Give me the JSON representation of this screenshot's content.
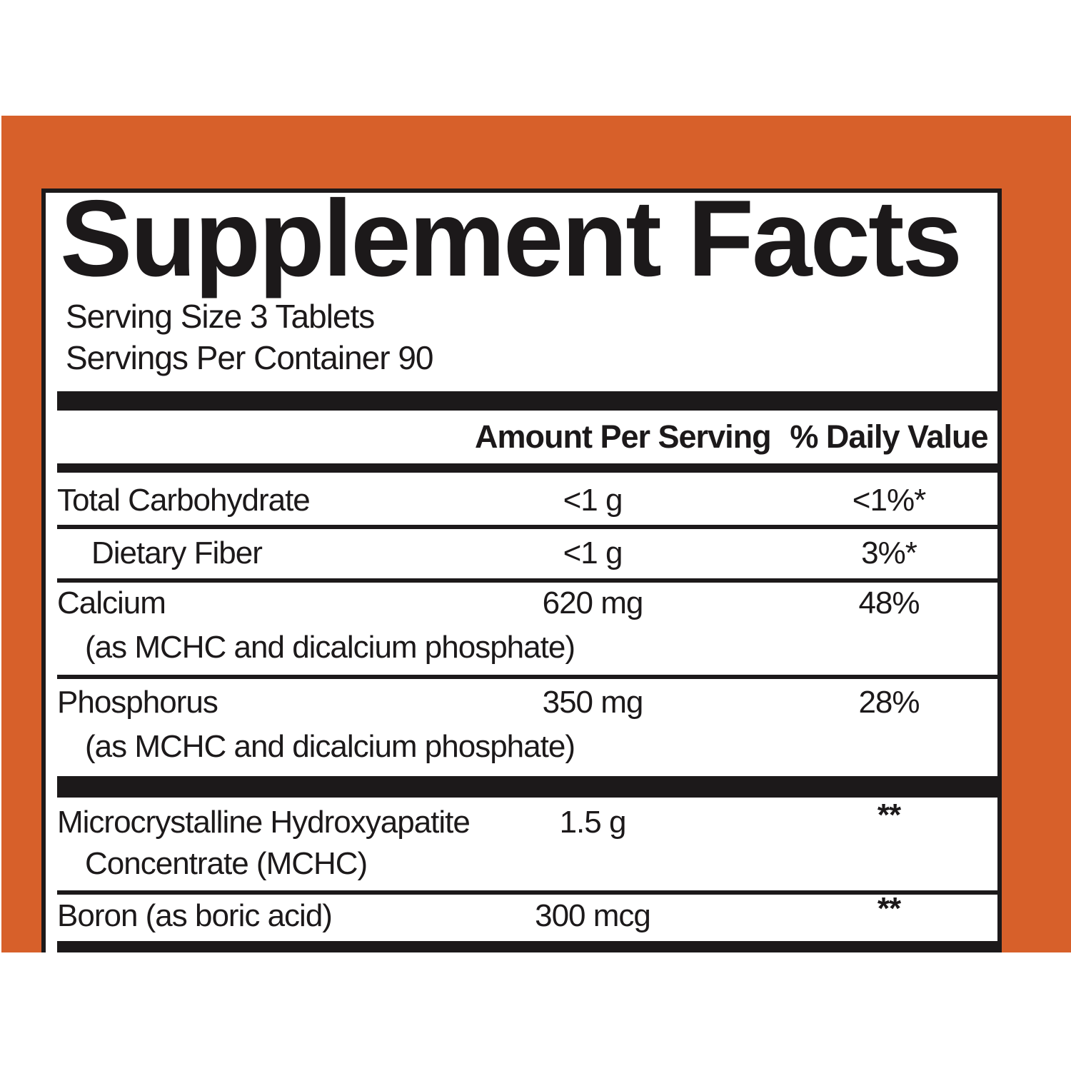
{
  "colors": {
    "orange": "#D7602A",
    "black": "#1C191A",
    "panel": "#FFFFFF"
  },
  "label": {
    "title": "Supplement Facts",
    "serving_size": "Serving Size 3 Tablets",
    "servings_per_container": "Servings Per Container 90",
    "columns": {
      "amount": "Amount Per Serving",
      "daily_value": "% Daily Value"
    },
    "rows": [
      {
        "name": "Total Carbohydrate",
        "amount": "<1 g",
        "daily_value": "<1%*"
      },
      {
        "name": "Dietary Fiber",
        "amount": "<1 g",
        "daily_value": "3%*"
      },
      {
        "name": "Calcium",
        "subtext": "(as MCHC and dicalcium phosphate)",
        "amount": "620 mg",
        "daily_value": "48%"
      },
      {
        "name": "Phosphorus",
        "subtext": "(as MCHC and dicalcium phosphate)",
        "amount": "350 mg",
        "daily_value": "28%"
      },
      {
        "name": "Microcrystalline Hydroxyapatite",
        "subtext": "Concentrate (MCHC)",
        "amount": "1.5 g",
        "daily_value": "**"
      },
      {
        "name": "Boron (as boric acid)",
        "amount": "300 mcg",
        "daily_value": "**"
      }
    ]
  }
}
